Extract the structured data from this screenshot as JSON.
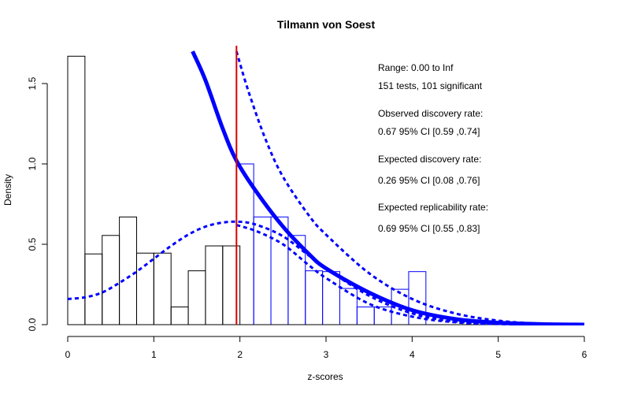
{
  "chart_data": {
    "type": "histogram",
    "title": "Tilmann von Soest",
    "xlabel": "z-scores",
    "ylabel": "Density",
    "xlim": [
      0,
      6
    ],
    "ylim": [
      0,
      1.7
    ],
    "x_ticks": [
      "0",
      "1",
      "2",
      "3",
      "4",
      "5",
      "6"
    ],
    "y_ticks": [
      "0.0",
      "0.5",
      "1.0",
      "1.5"
    ],
    "bin_width": 0.2,
    "bins_nonsignificant": {
      "color": "#000000",
      "bins": [
        {
          "x0": 0.0,
          "height": 1.67
        },
        {
          "x0": 0.2,
          "height": 0.44
        },
        {
          "x0": 0.4,
          "height": 0.555
        },
        {
          "x0": 0.6,
          "height": 0.67
        },
        {
          "x0": 0.8,
          "height": 0.445
        },
        {
          "x0": 1.0,
          "height": 0.445
        },
        {
          "x0": 1.2,
          "height": 0.11
        },
        {
          "x0": 1.4,
          "height": 0.335
        },
        {
          "x0": 1.6,
          "height": 0.49
        },
        {
          "x0": 1.8,
          "height": 0.49
        }
      ]
    },
    "bins_significant": {
      "color": "#0000ff",
      "bins": [
        {
          "x0": 1.96,
          "height": 1.0
        },
        {
          "x0": 2.16,
          "height": 0.67
        },
        {
          "x0": 2.36,
          "height": 0.67
        },
        {
          "x0": 2.56,
          "height": 0.555
        },
        {
          "x0": 2.76,
          "height": 0.335
        },
        {
          "x0": 2.96,
          "height": 0.33
        },
        {
          "x0": 3.16,
          "height": 0.225
        },
        {
          "x0": 3.36,
          "height": 0.11
        },
        {
          "x0": 3.56,
          "height": 0.11
        },
        {
          "x0": 3.76,
          "height": 0.22
        },
        {
          "x0": 3.96,
          "height": 0.33
        }
      ]
    },
    "critical_line": {
      "x": 1.96,
      "color": "#dd0000"
    },
    "fitted_curve": {
      "color": "#0000ff",
      "points": [
        [
          1.45,
          1.7
        ],
        [
          1.6,
          1.52
        ],
        [
          1.8,
          1.22
        ],
        [
          1.96,
          1.02
        ],
        [
          2.2,
          0.82
        ],
        [
          2.5,
          0.61
        ],
        [
          2.8,
          0.44
        ],
        [
          3.0,
          0.35
        ],
        [
          3.5,
          0.2
        ],
        [
          4.0,
          0.09
        ],
        [
          4.5,
          0.035
        ],
        [
          5.0,
          0.012
        ],
        [
          5.5,
          0.003
        ],
        [
          6.0,
          0.0
        ]
      ]
    },
    "upper_ci_curve": {
      "color": "#0000ff",
      "points": [
        [
          1.96,
          1.7
        ],
        [
          2.1,
          1.45
        ],
        [
          2.3,
          1.15
        ],
        [
          2.5,
          0.92
        ],
        [
          2.8,
          0.68
        ],
        [
          3.0,
          0.56
        ],
        [
          3.5,
          0.32
        ],
        [
          4.0,
          0.16
        ],
        [
          4.5,
          0.07
        ],
        [
          5.0,
          0.025
        ],
        [
          5.5,
          0.006
        ],
        [
          6.0,
          0.0
        ]
      ]
    },
    "lower_ci_curve": {
      "color": "#0000ff",
      "points": [
        [
          1.96,
          0.62
        ],
        [
          2.2,
          0.58
        ],
        [
          2.5,
          0.5
        ],
        [
          2.8,
          0.37
        ],
        [
          3.0,
          0.29
        ],
        [
          3.5,
          0.13
        ],
        [
          4.0,
          0.05
        ],
        [
          4.5,
          0.015
        ],
        [
          5.0,
          0.004
        ],
        [
          6.0,
          0.0
        ]
      ]
    },
    "density_curve": {
      "color": "#0000ff",
      "points": [
        [
          0.0,
          0.16
        ],
        [
          0.2,
          0.17
        ],
        [
          0.4,
          0.2
        ],
        [
          0.6,
          0.26
        ],
        [
          0.8,
          0.33
        ],
        [
          1.0,
          0.41
        ],
        [
          1.2,
          0.49
        ],
        [
          1.4,
          0.56
        ],
        [
          1.6,
          0.61
        ],
        [
          1.8,
          0.635
        ],
        [
          2.0,
          0.64
        ],
        [
          2.2,
          0.62
        ],
        [
          2.5,
          0.55
        ],
        [
          2.8,
          0.43
        ],
        [
          3.0,
          0.35
        ],
        [
          3.5,
          0.18
        ],
        [
          4.0,
          0.07
        ],
        [
          4.5,
          0.02
        ],
        [
          5.0,
          0.005
        ],
        [
          6.0,
          0.0
        ]
      ]
    },
    "annotations": [
      "Range: 0.00 to Inf",
      "151 tests, 101 significant",
      "Observed discovery rate:",
      "0.67  95% CI [0.59 ,0.74]",
      "Expected discovery rate:",
      "0.26  95% CI [0.08 ,0.76]",
      "Expected replicability rate:",
      "0.69  95% CI [0.55 ,0.83]"
    ]
  }
}
